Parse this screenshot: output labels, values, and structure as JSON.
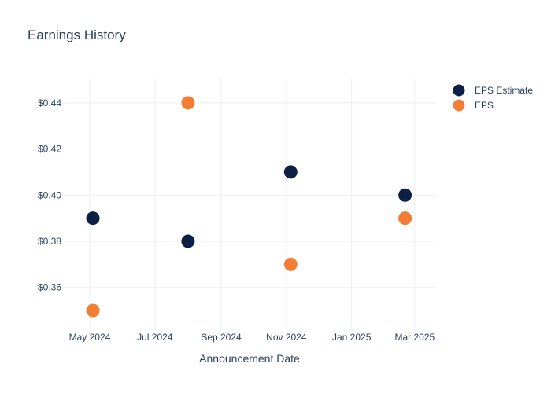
{
  "chart_data": {
    "type": "scatter",
    "title": "Earnings History",
    "xlabel": "Announcement Date",
    "ylabel": "",
    "x_ticks": [
      "May 2024",
      "Jul 2024",
      "Sep 2024",
      "Nov 2024",
      "Jan 2025",
      "Mar 2025"
    ],
    "x_tick_dates": [
      "2024-05-01",
      "2024-07-01",
      "2024-09-01",
      "2024-11-01",
      "2025-01-01",
      "2025-03-01"
    ],
    "xlim": [
      "2024-04-06",
      "2025-03-21"
    ],
    "y_ticks": [
      "$0.36",
      "$0.38",
      "$0.40",
      "$0.42",
      "$0.44"
    ],
    "y_tick_values": [
      0.36,
      0.38,
      0.4,
      0.42,
      0.44
    ],
    "ylim": [
      0.3415,
      0.4505
    ],
    "grid": true,
    "legend_position": "top-right",
    "series": [
      {
        "name": "EPS Estimate",
        "color": "#0d1f45",
        "points": [
          {
            "x": "2024-05-04",
            "y": 0.39
          },
          {
            "x": "2024-08-01",
            "y": 0.38
          },
          {
            "x": "2024-11-05",
            "y": 0.41
          },
          {
            "x": "2025-02-20",
            "y": 0.4
          }
        ]
      },
      {
        "name": "EPS",
        "color": "#f47d36",
        "points": [
          {
            "x": "2024-05-04",
            "y": 0.35
          },
          {
            "x": "2024-08-01",
            "y": 0.44
          },
          {
            "x": "2024-11-05",
            "y": 0.37
          },
          {
            "x": "2025-02-20",
            "y": 0.39
          }
        ]
      }
    ]
  }
}
